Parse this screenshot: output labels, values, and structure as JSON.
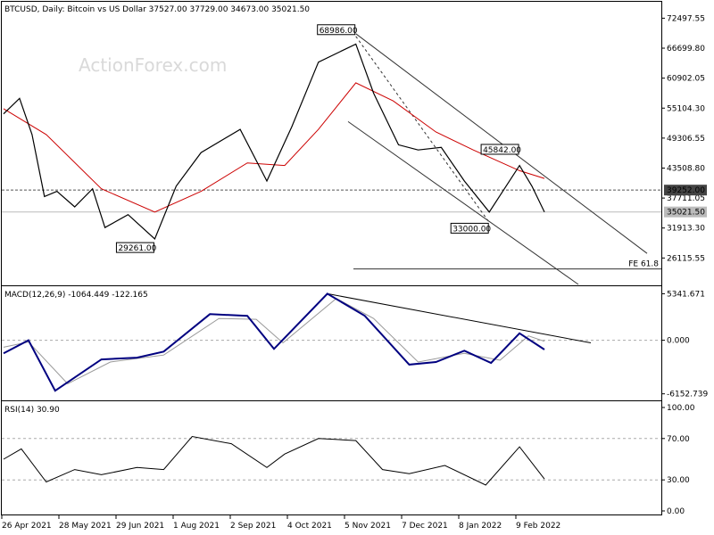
{
  "chart_data": {
    "type": "line",
    "symbol": "BTCUSD",
    "header": "BTCUSD, Daily:  Bitcoin vs US Dollar  37527.00 37729.00 34673.00 35021.50",
    "watermark": "ActionForex.com",
    "x_labels": [
      "26 Apr 2021",
      "28 May 2021",
      "29 Jun 2021",
      "1 Aug 2021",
      "2 Sep 2021",
      "4 Oct 2021",
      "5 Nov 2021",
      "7 Dec 2021",
      "8 Jan 2022",
      "9 Feb 2022"
    ],
    "price": {
      "y_ticks": [
        "72497.55",
        "66699.80",
        "60902.05",
        "55104.30",
        "49306.55",
        "43508.80",
        "37711.05",
        "31913.30",
        "26115.55"
      ],
      "ylim": [
        21000,
        75500
      ],
      "series": [
        {
          "x": "2021-04-26",
          "y": 54000
        },
        {
          "x": "2021-05-05",
          "y": 57000
        },
        {
          "x": "2021-05-12",
          "y": 50000
        },
        {
          "x": "2021-05-19",
          "y": 38000
        },
        {
          "x": "2021-05-26",
          "y": 39000
        },
        {
          "x": "2021-06-05",
          "y": 36000
        },
        {
          "x": "2021-06-15",
          "y": 39500
        },
        {
          "x": "2021-06-22",
          "y": 32000
        },
        {
          "x": "2021-07-05",
          "y": 34500
        },
        {
          "x": "2021-07-20",
          "y": 29800
        },
        {
          "x": "2021-08-01",
          "y": 40000
        },
        {
          "x": "2021-08-15",
          "y": 46500
        },
        {
          "x": "2021-09-06",
          "y": 51000
        },
        {
          "x": "2021-09-21",
          "y": 41000
        },
        {
          "x": "2021-10-05",
          "y": 51500
        },
        {
          "x": "2021-10-20",
          "y": 64000
        },
        {
          "x": "2021-11-10",
          "y": 67500
        },
        {
          "x": "2021-11-20",
          "y": 58000
        },
        {
          "x": "2021-12-04",
          "y": 48000
        },
        {
          "x": "2021-12-15",
          "y": 47000
        },
        {
          "x": "2021-12-28",
          "y": 47500
        },
        {
          "x": "2022-01-10",
          "y": 41000
        },
        {
          "x": "2022-01-24",
          "y": 35000
        },
        {
          "x": "2022-02-10",
          "y": 44000
        },
        {
          "x": "2022-02-17",
          "y": 40000
        },
        {
          "x": "2022-02-24",
          "y": 35021.5
        }
      ],
      "ma": [
        {
          "x": "2021-04-26",
          "y": 55000
        },
        {
          "x": "2021-05-20",
          "y": 50000
        },
        {
          "x": "2021-06-20",
          "y": 39500
        },
        {
          "x": "2021-07-20",
          "y": 35000
        },
        {
          "x": "2021-08-15",
          "y": 39000
        },
        {
          "x": "2021-09-10",
          "y": 44500
        },
        {
          "x": "2021-10-01",
          "y": 44000
        },
        {
          "x": "2021-10-20",
          "y": 51000
        },
        {
          "x": "2021-11-10",
          "y": 60000
        },
        {
          "x": "2021-12-01",
          "y": 56500
        },
        {
          "x": "2021-12-25",
          "y": 50500
        },
        {
          "x": "2022-01-15",
          "y": 47000
        },
        {
          "x": "2022-02-10",
          "y": 43000
        },
        {
          "x": "2022-02-24",
          "y": 41500
        }
      ],
      "annotations": [
        {
          "label": "68986.00",
          "x": "2021-11-10",
          "y": 68986
        },
        {
          "label": "29261.00",
          "x": "2021-07-20",
          "y": 29261
        },
        {
          "label": "45842.00",
          "x": "2022-02-10",
          "y": 45842
        },
        {
          "label": "33000.00",
          "x": "2022-01-24",
          "y": 33000
        }
      ],
      "h_level": {
        "label": "39252.00",
        "y": 39252
      },
      "last": {
        "label": "35021.50",
        "y": 35021.5
      },
      "fe": {
        "label": "FE 61.8",
        "y": 24000
      }
    },
    "macd": {
      "title": "MACD(12,26,9) -1064.449 -122.165",
      "y_ticks": [
        "5341.671",
        "0.000",
        "-6152.739"
      ],
      "ylim": [
        -6800,
        6100
      ],
      "series": [
        {
          "x": "2021-04-26",
          "y": -1500
        },
        {
          "x": "2021-05-10",
          "y": 0
        },
        {
          "x": "2021-05-25",
          "y": -5800
        },
        {
          "x": "2021-06-20",
          "y": -2200
        },
        {
          "x": "2021-07-10",
          "y": -2000
        },
        {
          "x": "2021-07-25",
          "y": -1300
        },
        {
          "x": "2021-08-20",
          "y": 3000
        },
        {
          "x": "2021-09-10",
          "y": 2800
        },
        {
          "x": "2021-09-25",
          "y": -1000
        },
        {
          "x": "2021-10-25",
          "y": 5341
        },
        {
          "x": "2021-11-15",
          "y": 2800
        },
        {
          "x": "2021-12-10",
          "y": -2800
        },
        {
          "x": "2021-12-25",
          "y": -2500
        },
        {
          "x": "2022-01-10",
          "y": -1200
        },
        {
          "x": "2022-01-25",
          "y": -2600
        },
        {
          "x": "2022-02-10",
          "y": 800
        },
        {
          "x": "2022-02-24",
          "y": -1064
        }
      ],
      "signal": [
        {
          "x": "2021-04-26",
          "y": -800
        },
        {
          "x": "2021-05-10",
          "y": -200
        },
        {
          "x": "2021-06-01",
          "y": -5000
        },
        {
          "x": "2021-06-25",
          "y": -2500
        },
        {
          "x": "2021-07-25",
          "y": -1700
        },
        {
          "x": "2021-08-25",
          "y": 2500
        },
        {
          "x": "2021-09-15",
          "y": 2400
        },
        {
          "x": "2021-09-30",
          "y": -300
        },
        {
          "x": "2021-10-30",
          "y": 4800
        },
        {
          "x": "2021-11-20",
          "y": 2500
        },
        {
          "x": "2021-12-15",
          "y": -2500
        },
        {
          "x": "2022-01-10",
          "y": -1500
        },
        {
          "x": "2022-01-30",
          "y": -2300
        },
        {
          "x": "2022-02-15",
          "y": 500
        },
        {
          "x": "2022-02-24",
          "y": -122
        }
      ]
    },
    "rsi": {
      "title": "RSI(14) 30.90",
      "y_ticks": [
        "100.00",
        "70.00",
        "30.00",
        "0.00"
      ],
      "ylim": [
        0,
        100
      ],
      "series": [
        {
          "x": "2021-04-26",
          "y": 50
        },
        {
          "x": "2021-05-06",
          "y": 60
        },
        {
          "x": "2021-05-20",
          "y": 28
        },
        {
          "x": "2021-06-05",
          "y": 40
        },
        {
          "x": "2021-06-20",
          "y": 35
        },
        {
          "x": "2021-07-10",
          "y": 42
        },
        {
          "x": "2021-07-25",
          "y": 40
        },
        {
          "x": "2021-08-10",
          "y": 72
        },
        {
          "x": "2021-09-01",
          "y": 65
        },
        {
          "x": "2021-09-21",
          "y": 42
        },
        {
          "x": "2021-10-01",
          "y": 55
        },
        {
          "x": "2021-10-20",
          "y": 70
        },
        {
          "x": "2021-11-10",
          "y": 68
        },
        {
          "x": "2021-11-25",
          "y": 40
        },
        {
          "x": "2021-12-10",
          "y": 36
        },
        {
          "x": "2021-12-30",
          "y": 44
        },
        {
          "x": "2022-01-22",
          "y": 25
        },
        {
          "x": "2022-02-10",
          "y": 62
        },
        {
          "x": "2022-02-24",
          "y": 30.9
        }
      ]
    },
    "colors": {
      "price": "#000000",
      "ma": "#cc0000",
      "macd": "#000080",
      "signal": "#999999",
      "rsi": "#000000",
      "grid": "#aaaaaa"
    }
  }
}
